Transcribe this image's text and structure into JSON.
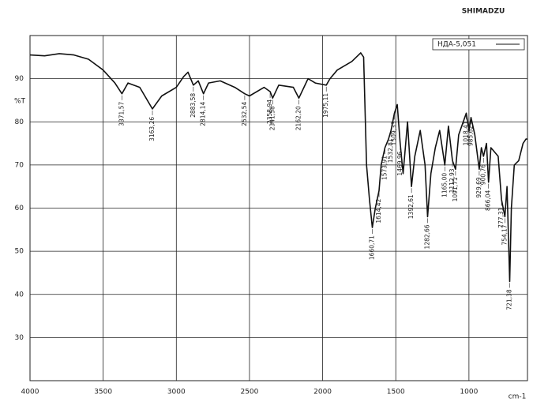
{
  "chart_data": {
    "type": "line",
    "logo": "SHIMADZU",
    "ylabel": "%T",
    "xlabel": "cm-1",
    "x": [
      4000,
      3900,
      3800,
      3700,
      3600,
      3500,
      3420,
      3371.57,
      3330,
      3250,
      3163.26,
      3100,
      3000,
      2950,
      2920,
      2883.58,
      2850,
      2814.14,
      2780,
      2700,
      2600,
      2532.54,
      2500,
      2400,
      2358.94,
      2341.58,
      2300,
      2200,
      2162.2,
      2100,
      2050,
      1975.11,
      1950,
      1900,
      1800,
      1740,
      1720,
      1700,
      1680,
      1660.71,
      1640,
      1614.42,
      1600,
      1573.91,
      1550,
      1532.81,
      1509.33,
      1490,
      1469.96,
      1450,
      1440,
      1420,
      1392.61,
      1370,
      1332.81,
      1300,
      1282.66,
      1260,
      1230,
      1200,
      1165,
      1140,
      1112.93,
      1091.71,
      1070,
      1018.41,
      1000,
      985.62,
      960,
      929.69,
      915,
      900.76,
      880,
      866.04,
      850,
      800,
      777.31,
      754.17,
      740,
      721.38,
      710,
      690,
      660,
      630,
      610,
      600
    ],
    "series": [
      {
        "name": "НДА-5,051",
        "color": "#111111",
        "values": [
          95.5,
          95.3,
          95.8,
          95.5,
          94.5,
          92,
          89,
          86.5,
          89,
          88,
          83,
          86,
          88,
          90.5,
          91.5,
          88.5,
          89.5,
          86.5,
          89,
          89.5,
          88,
          86.5,
          86,
          88,
          87,
          85.5,
          88.5,
          88,
          85.5,
          90,
          89,
          88.5,
          90,
          92,
          94,
          96,
          95,
          70,
          62,
          55.5,
          60,
          64,
          70,
          74,
          76,
          78,
          82,
          84,
          75,
          68,
          72,
          80,
          65,
          72,
          78,
          70,
          58,
          68,
          74,
          78,
          70,
          79,
          71,
          69,
          77,
          82,
          78,
          81,
          77,
          69,
          74,
          72,
          75,
          66,
          74,
          72,
          62,
          58,
          65,
          43,
          60,
          70,
          71,
          75,
          76,
          76
        ]
      }
    ],
    "xlim": [
      4000,
      600
    ],
    "ylim": [
      20,
      100
    ],
    "xticks": [
      4000,
      3500,
      3000,
      2500,
      2000,
      1500,
      1000
    ],
    "yticks": [
      30,
      40,
      50,
      60,
      70,
      80,
      90
    ],
    "grid": true,
    "annotations": [
      {
        "x": 3371.57,
        "label": "3371,57"
      },
      {
        "x": 3163.26,
        "label": "3163,26"
      },
      {
        "x": 2883.58,
        "label": "2883,58"
      },
      {
        "x": 2814.14,
        "label": "2814,14"
      },
      {
        "x": 2532.54,
        "label": "2532,54"
      },
      {
        "x": 2358.94,
        "label": "2358,94"
      },
      {
        "x": 2341.58,
        "label": "2341,58"
      },
      {
        "x": 2162.2,
        "label": "2162,20"
      },
      {
        "x": 1975.11,
        "label": "1975,11"
      },
      {
        "x": 1660.71,
        "label": "1660,71"
      },
      {
        "x": 1614.42,
        "label": "1614,42"
      },
      {
        "x": 1573.91,
        "label": "1573,91"
      },
      {
        "x": 1532.81,
        "label": "1532,81"
      },
      {
        "x": 1509.33,
        "label": "1509,33"
      },
      {
        "x": 1469.96,
        "label": "1469,96"
      },
      {
        "x": 1392.61,
        "label": "1392,61"
      },
      {
        "x": 1282.66,
        "label": "1282,66"
      },
      {
        "x": 1165,
        "label": "1165,00"
      },
      {
        "x": 1112.93,
        "label": "1112,93"
      },
      {
        "x": 1091.71,
        "label": "1091,71"
      },
      {
        "x": 1018.41,
        "label": "1018,41"
      },
      {
        "x": 985.62,
        "label": "985,62"
      },
      {
        "x": 929.69,
        "label": "929,69"
      },
      {
        "x": 900.76,
        "label": "900,76"
      },
      {
        "x": 866.04,
        "label": "866,04"
      },
      {
        "x": 777.31,
        "label": "777,31"
      },
      {
        "x": 754.17,
        "label": "754,17"
      },
      {
        "x": 721.38,
        "label": "721,38"
      }
    ]
  }
}
